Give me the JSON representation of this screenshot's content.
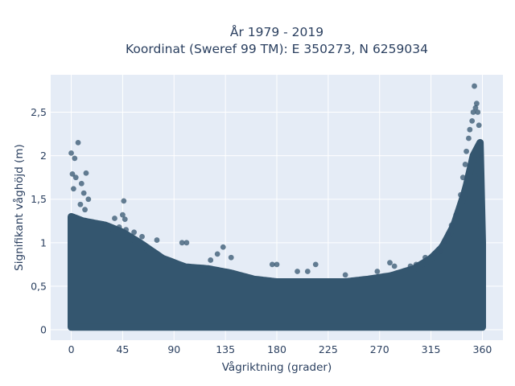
{
  "chart_data": {
    "type": "scatter",
    "title": "År 1979 - 2019",
    "subtitle": "Koordinat (Sweref 99 TM): E 350273, N 6259034",
    "xlabel": "Vågriktning (grader)",
    "ylabel": "Signifikant våghöjd (m)",
    "xlim": [
      -18,
      378
    ],
    "ylim": [
      -0.12,
      2.93
    ],
    "x_ticks": [
      {
        "value": 0,
        "label": "0"
      },
      {
        "value": 45,
        "label": "45"
      },
      {
        "value": 90,
        "label": "90"
      },
      {
        "value": 135,
        "label": "135"
      },
      {
        "value": 180,
        "label": "180"
      },
      {
        "value": 225,
        "label": "225"
      },
      {
        "value": 270,
        "label": "270"
      },
      {
        "value": 315,
        "label": "315"
      },
      {
        "value": 360,
        "label": "360"
      }
    ],
    "y_ticks": [
      {
        "value": 0,
        "label": "0"
      },
      {
        "value": 0.5,
        "label": "0,5"
      },
      {
        "value": 1,
        "label": "1"
      },
      {
        "value": 1.5,
        "label": "1,5"
      },
      {
        "value": 2,
        "label": "2"
      },
      {
        "value": 2.5,
        "label": "2,5"
      }
    ],
    "grid": true,
    "marker_color": "#34566f",
    "plot_bgcolor": "#e5ecf6",
    "upper_envelope": [
      {
        "x": 0,
        "y": 1.3
      },
      {
        "x": 10,
        "y": 1.25
      },
      {
        "x": 30,
        "y": 1.2
      },
      {
        "x": 45,
        "y": 1.12
      },
      {
        "x": 60,
        "y": 1.0
      },
      {
        "x": 80,
        "y": 0.82
      },
      {
        "x": 100,
        "y": 0.72
      },
      {
        "x": 120,
        "y": 0.7
      },
      {
        "x": 140,
        "y": 0.65
      },
      {
        "x": 160,
        "y": 0.58
      },
      {
        "x": 180,
        "y": 0.55
      },
      {
        "x": 200,
        "y": 0.55
      },
      {
        "x": 220,
        "y": 0.55
      },
      {
        "x": 240,
        "y": 0.55
      },
      {
        "x": 260,
        "y": 0.58
      },
      {
        "x": 280,
        "y": 0.62
      },
      {
        "x": 300,
        "y": 0.7
      },
      {
        "x": 315,
        "y": 0.82
      },
      {
        "x": 325,
        "y": 0.95
      },
      {
        "x": 335,
        "y": 1.2
      },
      {
        "x": 345,
        "y": 1.6
      },
      {
        "x": 352,
        "y": 2.0
      },
      {
        "x": 358,
        "y": 2.15
      },
      {
        "x": 360,
        "y": 1.0
      }
    ],
    "points": [
      {
        "x": 0,
        "y": 2.03
      },
      {
        "x": 6,
        "y": 2.15
      },
      {
        "x": 3,
        "y": 1.97
      },
      {
        "x": 1,
        "y": 1.79
      },
      {
        "x": 4,
        "y": 1.75
      },
      {
        "x": 13,
        "y": 1.8
      },
      {
        "x": 9,
        "y": 1.68
      },
      {
        "x": 11,
        "y": 1.57
      },
      {
        "x": 15,
        "y": 1.5
      },
      {
        "x": 8,
        "y": 1.44
      },
      {
        "x": 2,
        "y": 1.62
      },
      {
        "x": 12,
        "y": 1.38
      },
      {
        "x": 46,
        "y": 1.48
      },
      {
        "x": 45,
        "y": 1.32
      },
      {
        "x": 47,
        "y": 1.27
      },
      {
        "x": 38,
        "y": 1.28
      },
      {
        "x": 42,
        "y": 1.18
      },
      {
        "x": 48,
        "y": 1.15
      },
      {
        "x": 55,
        "y": 1.12
      },
      {
        "x": 62,
        "y": 1.07
      },
      {
        "x": 75,
        "y": 1.03
      },
      {
        "x": 97,
        "y": 1.0
      },
      {
        "x": 101,
        "y": 1.0
      },
      {
        "x": 133,
        "y": 0.95
      },
      {
        "x": 128,
        "y": 0.87
      },
      {
        "x": 140,
        "y": 0.83
      },
      {
        "x": 122,
        "y": 0.8
      },
      {
        "x": 176,
        "y": 0.75
      },
      {
        "x": 180,
        "y": 0.75
      },
      {
        "x": 214,
        "y": 0.75
      },
      {
        "x": 198,
        "y": 0.67
      },
      {
        "x": 207,
        "y": 0.67
      },
      {
        "x": 240,
        "y": 0.63
      },
      {
        "x": 268,
        "y": 0.67
      },
      {
        "x": 279,
        "y": 0.77
      },
      {
        "x": 283,
        "y": 0.73
      },
      {
        "x": 297,
        "y": 0.73
      },
      {
        "x": 302,
        "y": 0.75
      },
      {
        "x": 310,
        "y": 0.83
      },
      {
        "x": 318,
        "y": 0.87
      },
      {
        "x": 323,
        "y": 0.9
      },
      {
        "x": 327,
        "y": 1.02
      },
      {
        "x": 330,
        "y": 1.1
      },
      {
        "x": 333,
        "y": 1.2
      },
      {
        "x": 337,
        "y": 1.32
      },
      {
        "x": 341,
        "y": 1.55
      },
      {
        "x": 343,
        "y": 1.75
      },
      {
        "x": 345,
        "y": 1.9
      },
      {
        "x": 346,
        "y": 2.05
      },
      {
        "x": 348,
        "y": 2.2
      },
      {
        "x": 349,
        "y": 2.3
      },
      {
        "x": 351,
        "y": 2.4
      },
      {
        "x": 352,
        "y": 2.5
      },
      {
        "x": 354,
        "y": 2.55
      },
      {
        "x": 356,
        "y": 2.5
      },
      {
        "x": 355,
        "y": 2.6
      },
      {
        "x": 353,
        "y": 2.8
      },
      {
        "x": 358,
        "y": 2.15
      },
      {
        "x": 359,
        "y": 2.0
      },
      {
        "x": 357,
        "y": 2.35
      }
    ]
  }
}
